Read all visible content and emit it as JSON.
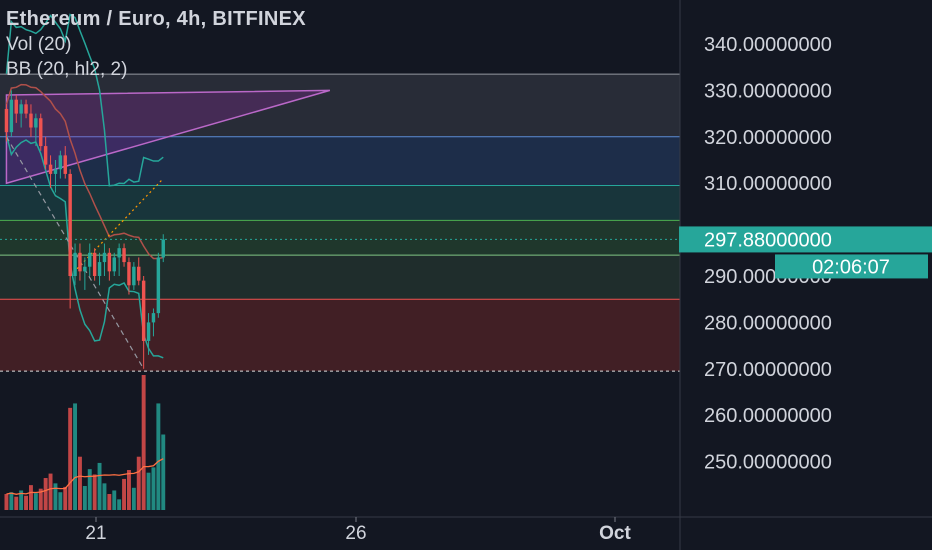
{
  "legend": {
    "title": "Ethereum / Euro, 4h, BITFINEX",
    "volume": "Vol (20)",
    "bollinger": "BB (20, hl2, 2)"
  },
  "colors": {
    "background": "#131722",
    "up": "#26a69a",
    "down": "#ef5350",
    "bb_basis": "#b0504a",
    "bb_band": "#26a69a",
    "vol_ma": "#ff7043",
    "badge": "#26a69a"
  },
  "last_price": {
    "value": "297.88000000",
    "countdown": "02:06:07"
  },
  "chart_data": {
    "type": "candlestick",
    "ylim": [
      235,
      350
    ],
    "y_ticks": [
      "340.00000000",
      "330.00000000",
      "320.00000000",
      "310.00000000",
      "290.00000000",
      "280.00000000",
      "270.00000000",
      "260.00000000",
      "250.00000000"
    ],
    "y_tick_values": [
      340,
      330,
      320,
      310,
      290,
      280,
      270,
      260,
      250
    ],
    "x_ticks": [
      "21",
      "26",
      "Oct"
    ],
    "x_tick_bar_index": [
      21,
      66,
      121
    ],
    "horizontal_levels": [
      333.5,
      320,
      309.5,
      302,
      294.5,
      285,
      269.5
    ],
    "zones": [
      {
        "from": 320,
        "to": 333.5,
        "color": "#434651"
      },
      {
        "from": 309.5,
        "to": 320,
        "color": "#2a4a7a"
      },
      {
        "from": 302,
        "to": 309.5,
        "color": "#1e5c5c"
      },
      {
        "from": 294.5,
        "to": 302,
        "color": "#2f5f3a"
      },
      {
        "from": 285,
        "to": 294.5,
        "color": "#2f4a3a"
      },
      {
        "from": 269.5,
        "to": 285,
        "color": "#7a2a2a"
      }
    ],
    "triangle": {
      "points": [
        [
          0,
          329
        ],
        [
          66,
          330
        ],
        [
          0,
          310
        ]
      ]
    },
    "candles": [
      {
        "o": 326,
        "h": 327,
        "l": 319,
        "c": 321
      },
      {
        "o": 321,
        "h": 330,
        "l": 320,
        "c": 328
      },
      {
        "o": 328,
        "h": 329,
        "l": 323,
        "c": 325
      },
      {
        "o": 325,
        "h": 328,
        "l": 322,
        "c": 327
      },
      {
        "o": 327,
        "h": 328,
        "l": 324,
        "c": 325
      },
      {
        "o": 325,
        "h": 327,
        "l": 320,
        "c": 322
      },
      {
        "o": 322,
        "h": 325,
        "l": 318,
        "c": 324
      },
      {
        "o": 324,
        "h": 325,
        "l": 317,
        "c": 318
      },
      {
        "o": 318,
        "h": 320,
        "l": 313,
        "c": 314
      },
      {
        "o": 314,
        "h": 316,
        "l": 309,
        "c": 312
      },
      {
        "o": 312,
        "h": 315,
        "l": 308,
        "c": 313
      },
      {
        "o": 313,
        "h": 317,
        "l": 311,
        "c": 316
      },
      {
        "o": 316,
        "h": 318,
        "l": 311,
        "c": 312
      },
      {
        "o": 312,
        "h": 313,
        "l": 283,
        "c": 290
      },
      {
        "o": 290,
        "h": 297,
        "l": 288,
        "c": 295
      },
      {
        "o": 295,
        "h": 297,
        "l": 289,
        "c": 291
      },
      {
        "o": 291,
        "h": 294,
        "l": 287,
        "c": 292
      },
      {
        "o": 292,
        "h": 297,
        "l": 290,
        "c": 295
      },
      {
        "o": 295,
        "h": 296,
        "l": 289,
        "c": 290
      },
      {
        "o": 290,
        "h": 295,
        "l": 288,
        "c": 293
      },
      {
        "o": 293,
        "h": 297,
        "l": 290,
        "c": 295
      },
      {
        "o": 295,
        "h": 296,
        "l": 289,
        "c": 291
      },
      {
        "o": 291,
        "h": 295,
        "l": 290,
        "c": 294
      },
      {
        "o": 294,
        "h": 297,
        "l": 290,
        "c": 296
      },
      {
        "o": 296,
        "h": 297,
        "l": 292,
        "c": 293
      },
      {
        "o": 293,
        "h": 294,
        "l": 286,
        "c": 288
      },
      {
        "o": 288,
        "h": 293,
        "l": 287,
        "c": 292
      },
      {
        "o": 292,
        "h": 294,
        "l": 288,
        "c": 289
      },
      {
        "o": 289,
        "h": 290,
        "l": 270,
        "c": 276
      },
      {
        "o": 276,
        "h": 282,
        "l": 273,
        "c": 280
      },
      {
        "o": 280,
        "h": 283,
        "l": 277,
        "c": 282
      },
      {
        "o": 282,
        "h": 295,
        "l": 281,
        "c": 294
      },
      {
        "o": 294,
        "h": 299,
        "l": 293,
        "c": 297.88
      }
    ],
    "volumes": [
      18,
      20,
      15,
      22,
      16,
      28,
      19,
      24,
      36,
      41,
      30,
      20,
      26,
      115,
      120,
      60,
      27,
      46,
      40,
      53,
      30,
      18,
      22,
      12,
      35,
      45,
      25,
      60,
      152,
      42,
      48,
      120,
      85
    ]
  }
}
